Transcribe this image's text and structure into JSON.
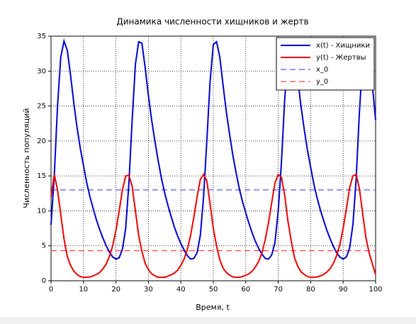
{
  "chart_data": {
    "type": "line",
    "title": "Динамика численности хищников и жертв",
    "xlabel": "Время, t",
    "ylabel": "Численность популяций",
    "x": [
      0,
      1,
      2,
      3,
      4,
      5,
      6,
      7,
      8,
      9,
      10,
      11,
      12,
      13,
      14,
      15,
      16,
      17,
      18,
      19,
      20,
      21,
      22,
      23,
      24,
      25,
      26,
      27,
      28,
      29,
      30,
      31,
      32,
      33,
      34,
      35,
      36,
      37,
      38,
      39,
      40,
      41,
      42,
      43,
      44,
      45,
      46,
      47,
      48,
      49,
      50,
      51,
      52,
      53,
      54,
      55,
      56,
      57,
      58,
      59,
      60,
      61,
      62,
      63,
      64,
      65,
      66,
      67,
      68,
      69,
      70,
      71,
      72,
      73,
      74,
      75,
      76,
      77,
      78,
      79,
      80,
      81,
      82,
      83,
      84,
      85,
      86,
      87,
      88,
      89,
      90,
      91,
      92,
      93,
      94,
      95,
      96,
      97,
      98,
      99,
      100
    ],
    "series": [
      {
        "name": "x(t) - Хищники",
        "color": "#0000cc",
        "values": [
          8,
          15,
          25,
          32,
          34.3,
          33,
          29.5,
          25.5,
          22,
          19,
          16.5,
          14,
          12,
          10.3,
          8.7,
          7.3,
          6.1,
          5,
          4.1,
          3.4,
          3.1,
          3.3,
          4.5,
          7.5,
          14,
          23,
          31,
          34.2,
          34,
          30.5,
          26.5,
          23,
          20,
          17.2,
          14.7,
          12.6,
          10.8,
          9.2,
          7.7,
          6.4,
          5.3,
          4.4,
          3.6,
          3.1,
          3.2,
          4,
          6.5,
          12,
          20,
          28.5,
          33.8,
          34.2,
          32,
          28,
          24.2,
          21,
          18,
          15.5,
          13.2,
          11.3,
          9.7,
          8.2,
          6.8,
          5.6,
          4.6,
          3.8,
          3.2,
          3.1,
          3.7,
          5.5,
          10,
          17,
          26,
          32.5,
          34.3,
          32.8,
          29,
          25,
          21.7,
          18.7,
          16.2,
          13.8,
          11.8,
          10.1,
          8.6,
          7.2,
          6,
          4.9,
          4,
          3.4,
          3.1,
          3.4,
          4.7,
          8,
          14.5,
          24,
          31.5,
          34.3,
          33,
          28,
          23
        ]
      },
      {
        "name": "y(t) - Жертвы",
        "color": "#ee0000",
        "values": [
          12,
          15.2,
          13,
          9.5,
          6,
          3.5,
          2.2,
          1.4,
          0.9,
          0.6,
          0.5,
          0.5,
          0.55,
          0.7,
          0.9,
          1.2,
          1.7,
          2.4,
          3.5,
          5,
          7.2,
          10,
          13,
          15,
          15.1,
          13.5,
          10,
          6.5,
          4.2,
          2.5,
          1.6,
          1,
          0.7,
          0.5,
          0.5,
          0.5,
          0.65,
          0.85,
          1.1,
          1.5,
          2.2,
          3.1,
          4.5,
          6.5,
          9.1,
          12,
          14.5,
          15.2,
          14.3,
          11,
          7.5,
          5,
          3,
          1.8,
          1.2,
          0.8,
          0.55,
          0.5,
          0.5,
          0.6,
          0.8,
          1,
          1.4,
          2,
          2.8,
          4,
          5.9,
          8.3,
          11.2,
          14,
          15.2,
          14.8,
          12.2,
          8.5,
          5.7,
          3.3,
          2.1,
          1.3,
          0.9,
          0.6,
          0.5,
          0.5,
          0.55,
          0.7,
          0.9,
          1.25,
          1.75,
          2.5,
          3.6,
          5.2,
          7.5,
          10.3,
          13.3,
          15,
          15.2,
          13.2,
          9.7,
          6.2,
          4,
          2.4,
          0.9
        ]
      }
    ],
    "hlines": [
      {
        "name": "x_0",
        "color": "#5555ff",
        "value": 13
      },
      {
        "name": "y_0",
        "color": "#ff4444",
        "value": 4.3
      }
    ],
    "xlim": [
      0,
      100
    ],
    "ylim": [
      0,
      35
    ],
    "xticks": [
      0,
      10,
      20,
      30,
      40,
      50,
      60,
      70,
      80,
      90,
      100
    ],
    "yticks": [
      0,
      5,
      10,
      15,
      20,
      25,
      30,
      35
    ],
    "grid": true,
    "legend": "upper-right"
  }
}
